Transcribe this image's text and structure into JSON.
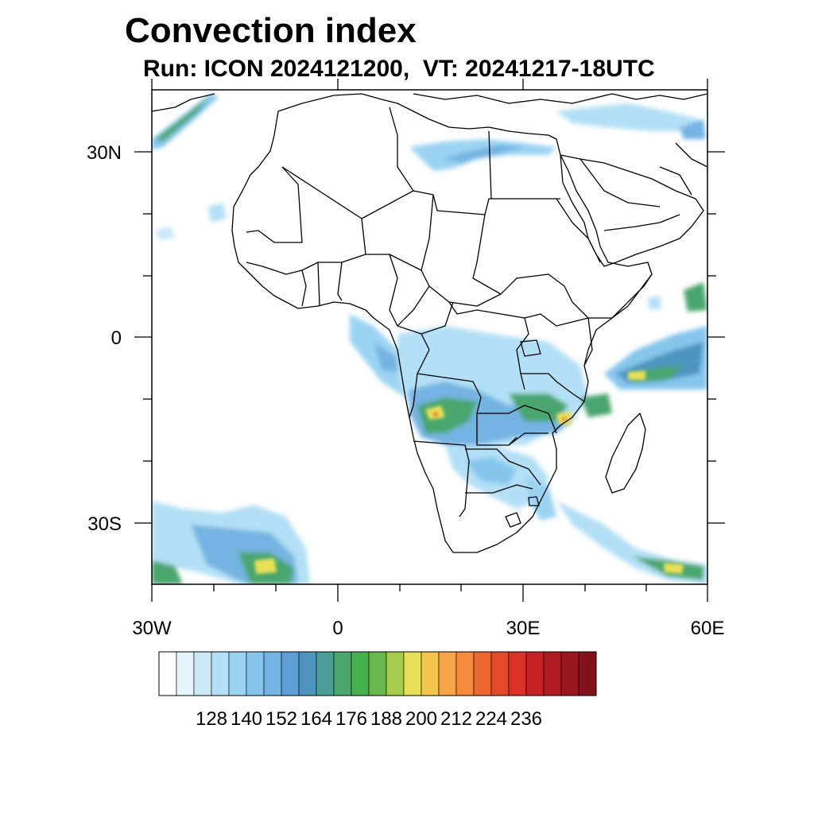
{
  "title": "Convection index",
  "subtitle": "Run: ICON 2024121200,  VT: 20241217-18UTC",
  "map": {
    "extent": {
      "lon": [
        -30,
        60
      ],
      "lat": [
        -40,
        40
      ]
    },
    "x_ticks": [
      {
        "value": -30,
        "label": "30W"
      },
      {
        "value": 0,
        "label": "0"
      },
      {
        "value": 30,
        "label": "30E"
      },
      {
        "value": 60,
        "label": "60E"
      }
    ],
    "y_ticks": [
      {
        "value": 30,
        "label": "30N"
      },
      {
        "value": 0,
        "label": "0"
      },
      {
        "value": -30,
        "label": "30S"
      }
    ],
    "minor_ticks_deg": 10
  },
  "colorbar": {
    "labels": [
      "128",
      "140",
      "152",
      "164",
      "176",
      "188",
      "200",
      "212",
      "224",
      "236"
    ],
    "colors": [
      "#ffffff",
      "#e6f4fc",
      "#cce9f8",
      "#b3e0f6",
      "#9bd4f2",
      "#86c6ec",
      "#74b4e2",
      "#5d9fd6",
      "#4e94bf",
      "#4a9e95",
      "#4aa66e",
      "#45b04e",
      "#66b94a",
      "#a6cc4e",
      "#e8e157",
      "#f5c64e",
      "#f5a545",
      "#f38a3c",
      "#ee6831",
      "#e44a2a",
      "#db3129",
      "#c62025",
      "#b01a22",
      "#9a161d",
      "#84121a"
    ]
  },
  "chart_data": {
    "type": "heatmap",
    "title": "Convection index",
    "subtitle": "Run: ICON 2024121200,  VT: 20241217-18UTC",
    "xlim": [
      -30,
      60
    ],
    "ylim": [
      -40,
      40
    ],
    "color_scale_labels": [
      128,
      140,
      152,
      164,
      176,
      188,
      200,
      212,
      224,
      236
    ]
  }
}
